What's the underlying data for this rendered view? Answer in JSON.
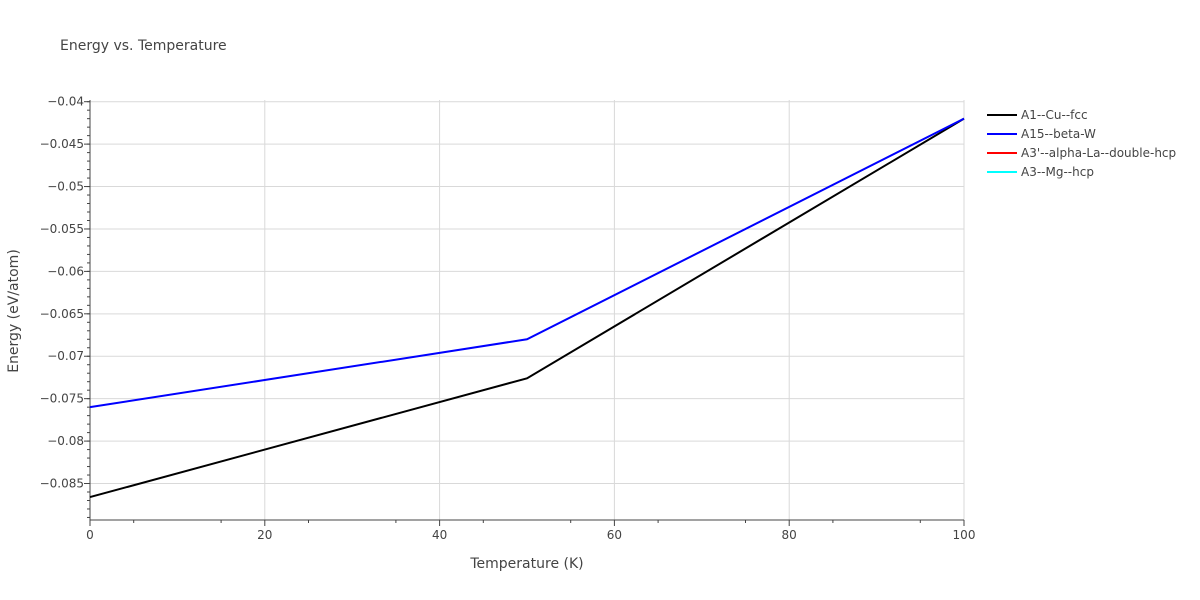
{
  "chart_data": {
    "type": "line",
    "title": "Energy vs. Temperature",
    "xlabel": "Temperature (K)",
    "ylabel": "Energy (eV/atom)",
    "xlim": [
      0,
      100
    ],
    "ylim": [
      -0.0893,
      -0.0398
    ],
    "x_ticks": [
      0,
      20,
      40,
      60,
      80,
      100
    ],
    "x_tick_labels": [
      "0",
      "20",
      "40",
      "60",
      "80",
      "100"
    ],
    "y_ticks": [
      -0.085,
      -0.08,
      -0.075,
      -0.07,
      -0.065,
      -0.06,
      -0.055,
      -0.05,
      -0.045,
      -0.04
    ],
    "y_tick_labels": [
      "−0.085",
      "−0.08",
      "−0.075",
      "−0.07",
      "−0.065",
      "−0.06",
      "−0.055",
      "−0.05",
      "−0.045",
      "−0.04"
    ],
    "grid": true,
    "legend_position": "top-right",
    "series": [
      {
        "name": "A1--Cu--fcc",
        "color": "#000000",
        "x": [
          0,
          50,
          100
        ],
        "y": [
          -0.0866,
          -0.0726,
          -0.042
        ]
      },
      {
        "name": "A15--beta-W",
        "color": "#0000ff",
        "x": [
          0,
          50,
          100
        ],
        "y": [
          -0.076,
          -0.068,
          -0.042
        ]
      },
      {
        "name": "A3'--alpha-La--double-hcp",
        "color": "#ff0000",
        "x": [],
        "y": []
      },
      {
        "name": "A3--Mg--hcp",
        "color": "#00ffff",
        "x": [],
        "y": []
      }
    ]
  }
}
